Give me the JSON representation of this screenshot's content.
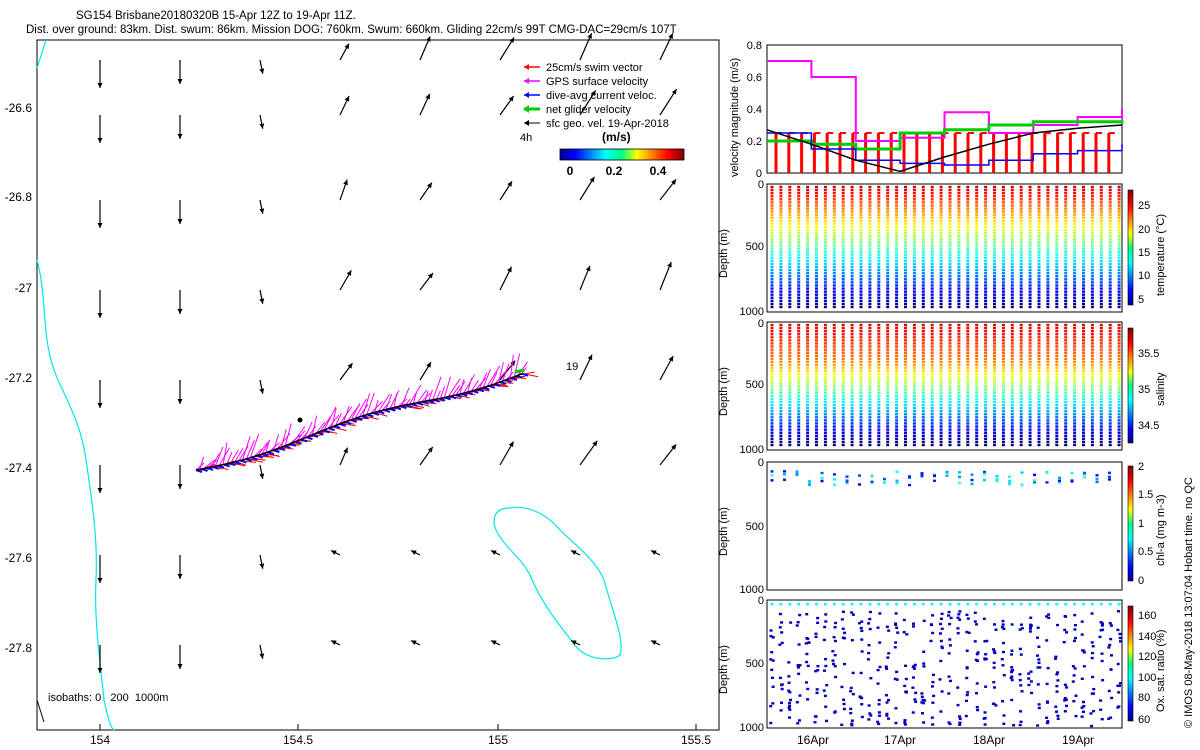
{
  "header": {
    "line1": "SG154 Brisbane20180320B 15-Apr 12Z to 19-Apr 11Z.",
    "line2": "Dist. over ground: 83km. Dist. swum: 86km. Mission DOG: 760km. Swum: 660km. Gliding 22cm/s 99T CMG-DAC=29cm/s 107T"
  },
  "map": {
    "x_ticks": [
      "154",
      "154.5",
      "155",
      "155.5"
    ],
    "y_ticks": [
      "-26.6",
      "-26.8",
      "-27",
      "-27.2",
      "-27.4",
      "-27.6",
      "-27.8"
    ],
    "legend": [
      {
        "label": "25cm/s swim vector",
        "color": "#ff0000"
      },
      {
        "label": "GPS surface velocity",
        "color": "#ff00ff"
      },
      {
        "label": "dive-avg current veloc.",
        "color": "#0000ff"
      },
      {
        "label": "net glider velocity",
        "color": "#00cc00"
      },
      {
        "label": "sfc geo. vel. 19-Apr-2018",
        "color": "#000000"
      }
    ],
    "colorbar_label": "(m/s)",
    "colorbar_ticks": [
      "0",
      "0.2",
      "0.4"
    ],
    "time_label": "4h",
    "day_label": "19",
    "isobath_label": "isobaths: 0   200  1000m",
    "track_color": "#ff0000",
    "isobath_color": "#00e5ee"
  },
  "right_panels": {
    "x_ticks": [
      "16Apr",
      "17Apr",
      "18Apr",
      "19Apr"
    ],
    "velocity": {
      "ylabel": "velocity magnitude (m/s)",
      "y_ticks": [
        "0",
        "0.2",
        "0.4",
        "0.6",
        "0.8"
      ]
    },
    "temperature": {
      "ylabel": "Depth (m)",
      "cblabel": "temperature (°C)",
      "y_ticks": [
        "0",
        "500",
        "1000"
      ],
      "cb_ticks": [
        "5",
        "10",
        "15",
        "20",
        "25"
      ]
    },
    "salinity": {
      "ylabel": "Depth (m)",
      "cblabel": "salinity",
      "y_ticks": [
        "0",
        "500",
        "1000"
      ],
      "cb_ticks": [
        "34.5",
        "35",
        "35.5"
      ]
    },
    "chla": {
      "ylabel": "Depth (m)",
      "cblabel": "chl-a (mg m-3)",
      "y_ticks": [
        "0",
        "500",
        "1000"
      ],
      "cb_ticks": [
        "0",
        "0.5",
        "1",
        "1.5",
        "2"
      ]
    },
    "oxygen": {
      "ylabel": "Depth (m)",
      "cblabel": "Ox. sat. ratio (%)",
      "y_ticks": [
        "0",
        "500",
        "1000"
      ],
      "cb_ticks": [
        "60",
        "80",
        "100",
        "120",
        "140",
        "160"
      ]
    }
  },
  "footer": {
    "credit": "© IMOS 08-May-2018 13:07:04 Hobart time. no QC"
  },
  "chart_data": [
    {
      "type": "scatter",
      "title": "SG154 Brisbane20180320B 15-Apr 12Z to 19-Apr 11Z.",
      "xlabel": "",
      "ylabel": "",
      "xlim": [
        153.83,
        155.55
      ],
      "ylim": [
        -27.98,
        -26.48
      ],
      "grid": false,
      "legend": "top-right",
      "series": [
        {
          "name": "25cm/s swim vector",
          "x": [
            154.24,
            154.45,
            154.6,
            154.78,
            155.0,
            155.05
          ],
          "y": [
            -27.4,
            -27.36,
            -27.33,
            -27.29,
            -27.22,
            -27.19
          ]
        },
        {
          "name": "dive-avg current veloc.",
          "x": [
            154.24,
            155.05
          ],
          "y": [
            -27.4,
            -27.19
          ]
        },
        {
          "name": "net glider velocity",
          "x": [
            155.05
          ],
          "y": [
            -27.19
          ]
        }
      ]
    },
    {
      "type": "line",
      "xlabel": "",
      "ylabel": "velocity magnitude (m/s)",
      "categories": [
        "15.5",
        "16",
        "16.5",
        "17",
        "17.5",
        "18",
        "18.5",
        "19",
        "19.5"
      ],
      "ylim": [
        0,
        0.8
      ],
      "series": [
        {
          "name": "GPS surface velocity",
          "values": [
            0.7,
            0.6,
            0.2,
            0.22,
            0.38,
            0.25,
            0.3,
            0.35,
            0.4
          ]
        },
        {
          "name": "net glider velocity",
          "values": [
            0.2,
            0.18,
            0.15,
            0.25,
            0.27,
            0.3,
            0.32,
            0.32,
            0.33
          ]
        },
        {
          "name": "dive-avg current veloc.",
          "values": [
            0.25,
            0.15,
            0.08,
            0.06,
            0.05,
            0.08,
            0.12,
            0.14,
            0.18
          ]
        },
        {
          "name": "sfc geo. vel.",
          "values": [
            0.27,
            0.18,
            0.08,
            0.01,
            0.1,
            0.18,
            0.25,
            0.28,
            0.3
          ]
        }
      ]
    }
  ]
}
